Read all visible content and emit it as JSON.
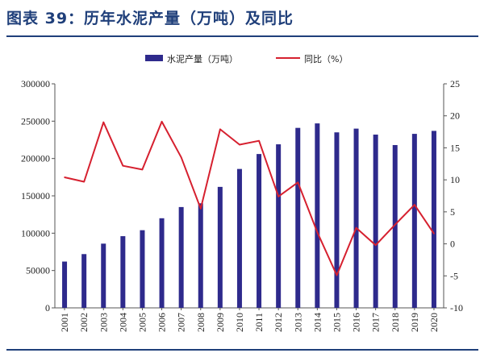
{
  "header": {
    "title": "图表 39：历年水泥产量（万吨）及同比"
  },
  "colors": {
    "bar": "#2e2a8c",
    "line": "#d6202f",
    "title": "#1f3f7a"
  },
  "chart_data": {
    "type": "bar",
    "title": "",
    "xlabel": "",
    "ylabel": "",
    "categories": [
      "2001",
      "2002",
      "2003",
      "2004",
      "2005",
      "2006",
      "2007",
      "2008",
      "2009",
      "2010",
      "2011",
      "2012",
      "2013",
      "2014",
      "2015",
      "2016",
      "2017",
      "2018",
      "2019",
      "2020"
    ],
    "series": [
      {
        "name": "水泥产量（万吨）",
        "kind": "bar",
        "axis": "left",
        "values": [
          62000,
          72000,
          86000,
          96000,
          104000,
          120000,
          135000,
          140000,
          162000,
          186000,
          206000,
          219000,
          241000,
          247000,
          235000,
          240000,
          232000,
          218000,
          233000,
          237000
        ]
      },
      {
        "name": "同比（%）",
        "kind": "line",
        "axis": "right",
        "values": [
          10.4,
          9.7,
          19.0,
          12.2,
          11.6,
          19.1,
          13.5,
          5.5,
          17.9,
          15.5,
          16.1,
          7.4,
          9.6,
          1.8,
          -4.9,
          2.5,
          -0.2,
          3.0,
          6.1,
          1.6
        ]
      }
    ],
    "y_left": {
      "ylim": [
        0,
        300000
      ],
      "ticks": [
        "0",
        "50000",
        "100000",
        "150000",
        "200000",
        "250000",
        "300000"
      ]
    },
    "y_right": {
      "ylim": [
        -10,
        25
      ],
      "ticks": [
        "-10",
        "-5",
        "0",
        "5",
        "10",
        "15",
        "20",
        "25"
      ]
    },
    "legend": {
      "position": "top-center",
      "items": [
        "水泥产量（万吨）",
        "同比（%）"
      ]
    },
    "grid": false
  }
}
